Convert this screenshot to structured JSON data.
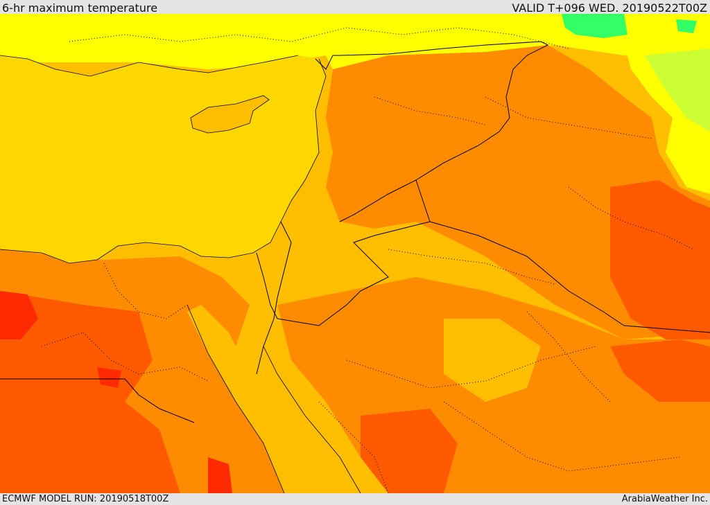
{
  "header": {
    "title": "6-hr maximum temperature",
    "valid": "VALID T+096 WED. 20190522T00Z"
  },
  "footer": {
    "model_run": "ECMWF MODEL RUN: 20190518T00Z",
    "brand": "ArabiaWeather Inc."
  },
  "map": {
    "palette": {
      "sea": "#ffd700",
      "yellow": "#ffff00",
      "light_orange": "#ffbf00",
      "orange": "#ff8c00",
      "dark_orange": "#ff5a00",
      "red": "#ff2a00",
      "light_green": "#ccff33",
      "green": "#33ff66",
      "border": "#000000"
    }
  }
}
